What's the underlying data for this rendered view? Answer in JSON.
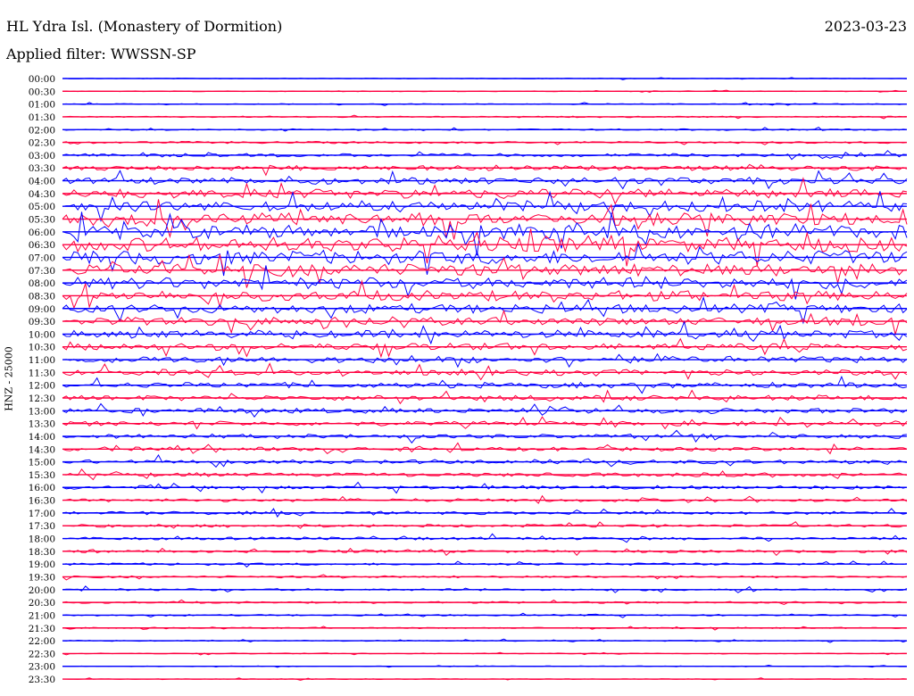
{
  "header": {
    "station": "HL Ydra Isl. (Monastery of Dormition)",
    "date": "2023-03-23",
    "filter": "Applied filter: WWSSN-SP"
  },
  "chart_data": {
    "type": "line",
    "title": "HL Ydra Isl. (Monastery of Dormition)",
    "ylabel": "HNZ - 25000",
    "xlabel": "",
    "colors": [
      "#0000ff",
      "#ff0040"
    ],
    "time_labels": [
      "00:00",
      "00:30",
      "01:00",
      "01:30",
      "02:00",
      "02:30",
      "03:00",
      "03:30",
      "04:00",
      "04:30",
      "05:00",
      "05:30",
      "06:00",
      "06:30",
      "07:00",
      "07:30",
      "08:00",
      "08:30",
      "09:00",
      "09:30",
      "10:00",
      "10:30",
      "11:00",
      "11:30",
      "12:00",
      "12:30",
      "13:00",
      "13:30",
      "14:00",
      "14:30",
      "15:00",
      "15:30",
      "16:00",
      "16:30",
      "17:00",
      "17:30",
      "18:00",
      "18:30",
      "19:00",
      "19:30",
      "20:00",
      "20:30",
      "21:00",
      "21:30",
      "22:00",
      "22:30",
      "23:00",
      "23:30"
    ],
    "row_amplitude": [
      0.3,
      0.3,
      0.4,
      0.5,
      0.6,
      0.8,
      1.2,
      1.8,
      2.6,
      3.4,
      4.0,
      4.6,
      5.2,
      5.4,
      5.0,
      4.6,
      4.2,
      3.8,
      3.4,
      3.0,
      2.8,
      2.6,
      2.4,
      2.2,
      2.0,
      1.9,
      1.8,
      1.7,
      1.6,
      1.5,
      1.5,
      1.4,
      1.3,
      1.2,
      1.2,
      1.1,
      1.1,
      1.0,
      0.9,
      0.8,
      0.8,
      0.7,
      0.6,
      0.5,
      0.4,
      0.35,
      0.3,
      0.3
    ],
    "grid": false
  }
}
